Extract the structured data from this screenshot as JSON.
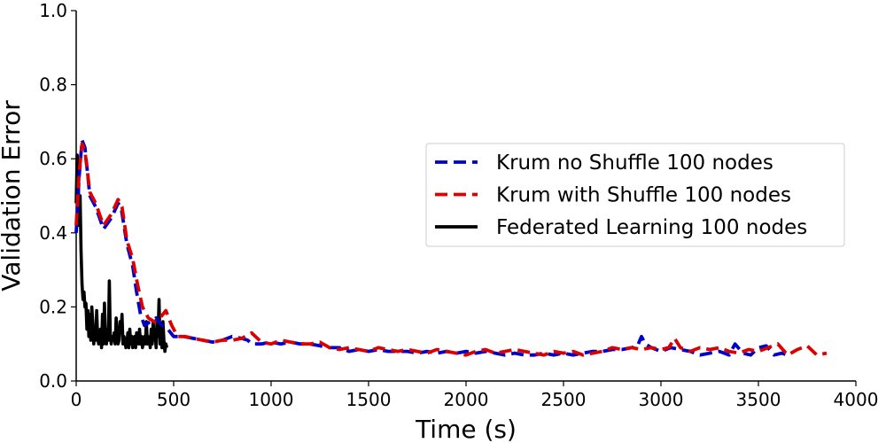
{
  "chart_data": {
    "type": "line",
    "xlabel": "Time (s)",
    "ylabel": "Validation Error",
    "xlim": [
      0,
      4000
    ],
    "ylim": [
      0.0,
      1.0
    ],
    "xticks": [
      0,
      500,
      1000,
      1500,
      2000,
      2500,
      3000,
      3500,
      4000
    ],
    "yticks": [
      0.0,
      0.2,
      0.4,
      0.6,
      0.8,
      1.0
    ],
    "xtick_labels": [
      "0",
      "500",
      "1000",
      "1500",
      "2000",
      "2500",
      "3000",
      "3500",
      "4000"
    ],
    "ytick_labels": [
      "0.0",
      "0.2",
      "0.4",
      "0.6",
      "0.8",
      "1.0"
    ],
    "grid": false,
    "legend_position": "center-right",
    "series": [
      {
        "name": "Krum no Shuffle 100 nodes",
        "color": "#0000cc",
        "style": "dashed",
        "x": [
          0,
          15,
          30,
          45,
          70,
          100,
          140,
          180,
          215,
          230,
          260,
          290,
          310,
          330,
          350,
          380,
          410,
          440,
          470,
          500,
          550,
          600,
          650,
          700,
          750,
          800,
          850,
          880,
          900,
          950,
          1000,
          1050,
          1100,
          1150,
          1200,
          1250,
          1300,
          1350,
          1400,
          1450,
          1500,
          1550,
          1600,
          1650,
          1700,
          1750,
          1800,
          1850,
          1900,
          1950,
          2000,
          2050,
          2100,
          2150,
          2200,
          2250,
          2300,
          2350,
          2400,
          2450,
          2500,
          2550,
          2600,
          2650,
          2700,
          2750,
          2800,
          2850,
          2880,
          2900,
          2920,
          2950,
          3000,
          3050,
          3100,
          3150,
          3200,
          3250,
          3300,
          3350,
          3380,
          3420,
          3460,
          3500,
          3540,
          3580,
          3620,
          3650
        ],
        "y": [
          0.4,
          0.55,
          0.65,
          0.63,
          0.5,
          0.47,
          0.41,
          0.44,
          0.48,
          0.47,
          0.37,
          0.31,
          0.24,
          0.18,
          0.15,
          0.16,
          0.17,
          0.15,
          0.14,
          0.12,
          0.12,
          0.115,
          0.11,
          0.105,
          0.11,
          0.12,
          0.115,
          0.11,
          0.1,
          0.1,
          0.105,
          0.1,
          0.105,
          0.1,
          0.1,
          0.095,
          0.09,
          0.09,
          0.08,
          0.085,
          0.08,
          0.085,
          0.08,
          0.08,
          0.08,
          0.075,
          0.08,
          0.075,
          0.08,
          0.075,
          0.08,
          0.075,
          0.08,
          0.075,
          0.07,
          0.075,
          0.07,
          0.07,
          0.075,
          0.07,
          0.075,
          0.07,
          0.075,
          0.08,
          0.08,
          0.085,
          0.085,
          0.09,
          0.095,
          0.12,
          0.1,
          0.09,
          0.08,
          0.09,
          0.085,
          0.08,
          0.07,
          0.075,
          0.08,
          0.07,
          0.1,
          0.075,
          0.07,
          0.09,
          0.095,
          0.07,
          0.075,
          0.07
        ]
      },
      {
        "name": "Krum with Shuffle 100 nodes",
        "color": "#dd0000",
        "style": "dashed",
        "x": [
          0,
          15,
          30,
          45,
          70,
          100,
          140,
          180,
          215,
          235,
          260,
          290,
          315,
          340,
          370,
          400,
          430,
          460,
          490,
          520,
          560,
          600,
          650,
          700,
          750,
          800,
          850,
          900,
          950,
          1000,
          1050,
          1100,
          1150,
          1200,
          1250,
          1300,
          1350,
          1400,
          1450,
          1500,
          1550,
          1600,
          1650,
          1700,
          1750,
          1800,
          1850,
          1900,
          1950,
          2000,
          2050,
          2100,
          2150,
          2200,
          2250,
          2300,
          2350,
          2400,
          2450,
          2500,
          2550,
          2600,
          2650,
          2700,
          2750,
          2800,
          2850,
          2900,
          2950,
          3000,
          3040,
          3070,
          3100,
          3150,
          3200,
          3250,
          3300,
          3350,
          3400,
          3450,
          3500,
          3550,
          3600,
          3650,
          3700,
          3750,
          3800,
          3850
        ],
        "y": [
          0.42,
          0.56,
          0.64,
          0.62,
          0.51,
          0.48,
          0.42,
          0.45,
          0.49,
          0.47,
          0.38,
          0.33,
          0.26,
          0.2,
          0.17,
          0.16,
          0.17,
          0.19,
          0.15,
          0.12,
          0.12,
          0.115,
          0.11,
          0.105,
          0.11,
          0.11,
          0.115,
          0.13,
          0.105,
          0.1,
          0.11,
          0.105,
          0.1,
          0.1,
          0.105,
          0.09,
          0.085,
          0.09,
          0.085,
          0.08,
          0.09,
          0.085,
          0.08,
          0.085,
          0.08,
          0.075,
          0.085,
          0.08,
          0.075,
          0.07,
          0.08,
          0.085,
          0.075,
          0.08,
          0.085,
          0.08,
          0.075,
          0.07,
          0.08,
          0.075,
          0.08,
          0.07,
          0.075,
          0.08,
          0.09,
          0.085,
          0.09,
          0.085,
          0.09,
          0.085,
          0.09,
          0.115,
          0.09,
          0.08,
          0.09,
          0.085,
          0.09,
          0.08,
          0.075,
          0.085,
          0.08,
          0.09,
          0.1,
          0.07,
          0.085,
          0.095,
          0.07,
          0.075
        ]
      },
      {
        "name": "Federated Learning 100 nodes",
        "color": "#000000",
        "style": "solid",
        "x": [
          0,
          5,
          10,
          15,
          20,
          25,
          30,
          35,
          40,
          45,
          50,
          55,
          60,
          65,
          70,
          75,
          80,
          85,
          90,
          95,
          100,
          105,
          110,
          115,
          120,
          125,
          130,
          135,
          140,
          145,
          150,
          155,
          160,
          165,
          170,
          175,
          180,
          185,
          190,
          195,
          200,
          205,
          210,
          215,
          220,
          225,
          230,
          235,
          240,
          245,
          250,
          255,
          260,
          265,
          270,
          275,
          280,
          285,
          290,
          295,
          300,
          305,
          310,
          315,
          320,
          325,
          330,
          335,
          340,
          345,
          350,
          355,
          360,
          365,
          370,
          375,
          380,
          385,
          390,
          395,
          400,
          405,
          410,
          415,
          420,
          425,
          430,
          435,
          440,
          445,
          450,
          455,
          460,
          465
        ],
        "y": [
          0.48,
          0.61,
          0.55,
          0.42,
          0.5,
          0.35,
          0.26,
          0.22,
          0.24,
          0.2,
          0.21,
          0.14,
          0.19,
          0.12,
          0.18,
          0.11,
          0.2,
          0.16,
          0.1,
          0.14,
          0.11,
          0.19,
          0.12,
          0.1,
          0.12,
          0.14,
          0.09,
          0.18,
          0.1,
          0.21,
          0.12,
          0.1,
          0.14,
          0.11,
          0.27,
          0.12,
          0.1,
          0.12,
          0.11,
          0.13,
          0.1,
          0.17,
          0.12,
          0.1,
          0.11,
          0.16,
          0.13,
          0.18,
          0.1,
          0.12,
          0.11,
          0.09,
          0.1,
          0.13,
          0.09,
          0.14,
          0.1,
          0.12,
          0.09,
          0.1,
          0.12,
          0.09,
          0.13,
          0.11,
          0.1,
          0.14,
          0.1,
          0.12,
          0.09,
          0.11,
          0.12,
          0.1,
          0.16,
          0.1,
          0.12,
          0.11,
          0.09,
          0.14,
          0.1,
          0.16,
          0.11,
          0.13,
          0.09,
          0.17,
          0.12,
          0.22,
          0.1,
          0.13,
          0.09,
          0.16,
          0.11,
          0.08,
          0.1,
          0.09
        ]
      }
    ]
  }
}
